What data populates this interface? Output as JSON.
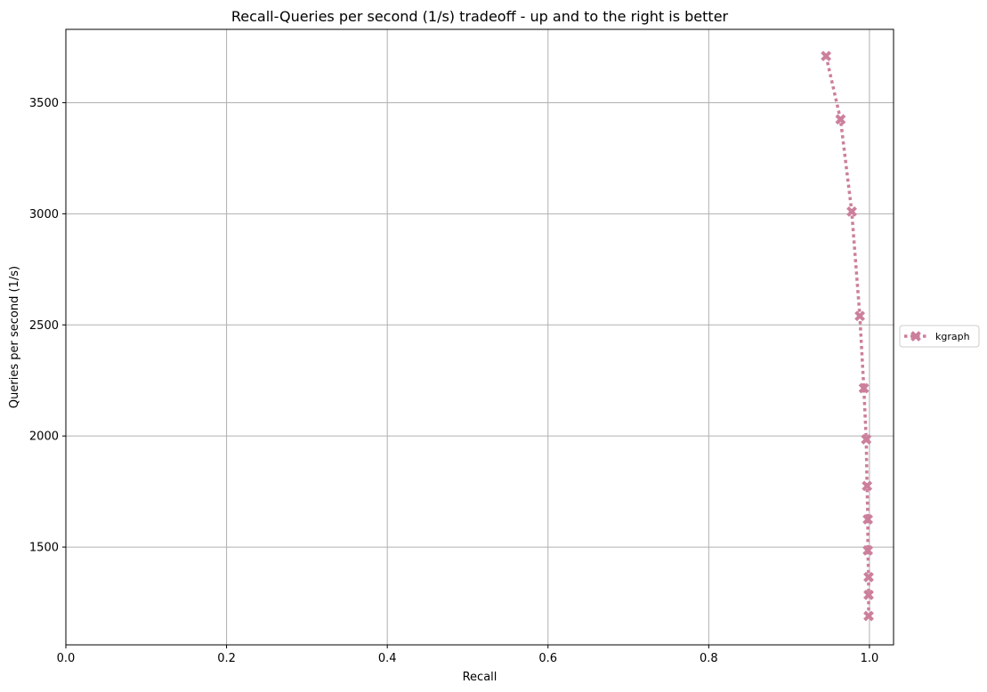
{
  "chart_data": {
    "type": "line",
    "title": "Recall-Queries per second (1/s) tradeoff - up and to the right is better",
    "xlabel": "Recall",
    "ylabel": "Queries per second (1/s)",
    "xlim": [
      0.0,
      1.03
    ],
    "ylim": [
      1060,
      3830
    ],
    "xticks": [
      0.0,
      0.2,
      0.4,
      0.6,
      0.8,
      1.0
    ],
    "xtick_labels": [
      "0.0",
      "0.2",
      "0.4",
      "0.6",
      "0.8",
      "1.0"
    ],
    "yticks": [
      1500,
      2000,
      2500,
      3000,
      3500
    ],
    "ytick_labels": [
      "1500",
      "2000",
      "2500",
      "3000",
      "3500"
    ],
    "grid": true,
    "legend_position": "right, outside plot",
    "series": [
      {
        "name": "kgraph",
        "color": "#cc7f9b",
        "line_style": "dotted",
        "marker": "X",
        "points": [
          {
            "x": 0.946,
            "y": 3710
          },
          {
            "x": 0.964,
            "y": 3425
          },
          {
            "x": 0.978,
            "y": 3010
          },
          {
            "x": 0.988,
            "y": 2540
          },
          {
            "x": 0.993,
            "y": 2215
          },
          {
            "x": 0.996,
            "y": 1985
          },
          {
            "x": 0.997,
            "y": 1775
          },
          {
            "x": 0.998,
            "y": 1625
          },
          {
            "x": 0.998,
            "y": 1485
          },
          {
            "x": 0.999,
            "y": 1365
          },
          {
            "x": 0.999,
            "y": 1285
          },
          {
            "x": 0.999,
            "y": 1190
          }
        ]
      }
    ]
  }
}
